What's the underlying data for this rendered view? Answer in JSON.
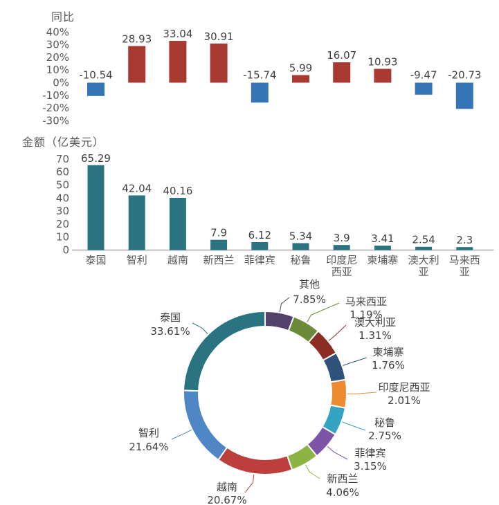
{
  "page": {
    "background": "#ffffff"
  },
  "titles": {
    "yoy_chart": "同比",
    "amount_chart": "金额（亿美元）"
  },
  "chart_data": [
    {
      "type": "bar",
      "title": "同比",
      "categories": [
        "泰国",
        "智利",
        "越南",
        "新西兰",
        "菲律宾",
        "秘鲁",
        "印度尼西亚",
        "柬埔寨",
        "澳大利亚",
        "马来西亚"
      ],
      "values": [
        -10.54,
        28.93,
        33.04,
        30.91,
        -15.74,
        5.99,
        16.07,
        10.93,
        -9.47,
        -20.73
      ],
      "value_labels": [
        "-10.54",
        "28.93",
        "33.04",
        "30.91",
        "-15.74",
        "5.99",
        "16.07",
        "10.93",
        "-9.47",
        "-20.73"
      ],
      "y_ticks": [
        "40%",
        "30%",
        "20%",
        "10%",
        "0%",
        "-10%",
        "-20%",
        "-30%"
      ],
      "y_tick_values": [
        40,
        30,
        20,
        10,
        0,
        -10,
        -20,
        -30
      ],
      "ylim": [
        -30,
        40
      ],
      "grid": false,
      "positive_color": "#A93A32",
      "negative_color": "#3574B5",
      "label_color": "#3f3f3f",
      "axis_text_color": "#595959"
    },
    {
      "type": "bar",
      "title": "金额（亿美元）",
      "categories": [
        "泰国",
        "智利",
        "越南",
        "新西兰",
        "菲律宾",
        "秘鲁",
        "印度尼西亚",
        "柬埔寨",
        "澳大利亚",
        "马来西亚"
      ],
      "values": [
        65.29,
        42.04,
        40.16,
        7.9,
        6.12,
        5.34,
        3.9,
        3.41,
        2.54,
        2.3
      ],
      "value_labels": [
        "65.29",
        "42.04",
        "40.16",
        "7.9",
        "6.12",
        "5.34",
        "3.9",
        "3.41",
        "2.54",
        "2.3"
      ],
      "y_ticks": [
        "70",
        "60",
        "50",
        "40",
        "30",
        "20",
        "10",
        "0"
      ],
      "y_tick_values": [
        70,
        60,
        50,
        40,
        30,
        20,
        10,
        0
      ],
      "ylim": [
        0,
        70
      ],
      "grid": false,
      "bar_color": "#2B7380",
      "axis_line_color": "#A6A6A6",
      "label_color": "#3f3f3f",
      "axis_text_color": "#595959"
    },
    {
      "type": "donut",
      "labels": [
        "泰国",
        "智利",
        "越南",
        "新西兰",
        "菲律宾",
        "秘鲁",
        "印度尼西亚",
        "柬埔寨",
        "澳大利亚",
        "马来西亚",
        "其他"
      ],
      "values": [
        33.61,
        21.64,
        20.67,
        4.06,
        3.15,
        2.75,
        2.01,
        1.76,
        1.31,
        1.19,
        7.85
      ],
      "value_labels": [
        "33.61%",
        "21.64%",
        "20.67%",
        "4.06%",
        "3.15%",
        "2.75%",
        "2.01%",
        "1.76%",
        "1.31%",
        "1.19%",
        "7.85%"
      ],
      "colors": [
        "#2A7380",
        "#4E86C6",
        "#BC3F3C",
        "#8CB445",
        "#7C55A8",
        "#35A4C2",
        "#EE8B31",
        "#2F527B",
        "#8C2D24",
        "#6C8B39",
        "#534169"
      ],
      "min_angle_deg": 20,
      "start_angle": "top",
      "direction_of_data_order": "counterclockwise",
      "label_style": "outside-callout"
    }
  ]
}
